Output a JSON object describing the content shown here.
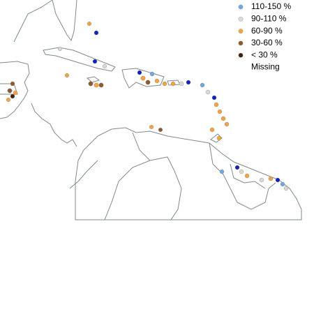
{
  "legend": [
    {
      "label": "110-150 %",
      "color": "#6fa8dc"
    },
    {
      "label": "90-110 %",
      "color": "#d9d9d9"
    },
    {
      "label": "60-90 %",
      "color": "#f4a340"
    },
    {
      "label": "30-60 %",
      "color": "#8c5a2b"
    },
    {
      "label": "< 30  %",
      "color": "#3d2410"
    },
    {
      "label": "Missing"
    }
  ]
}
